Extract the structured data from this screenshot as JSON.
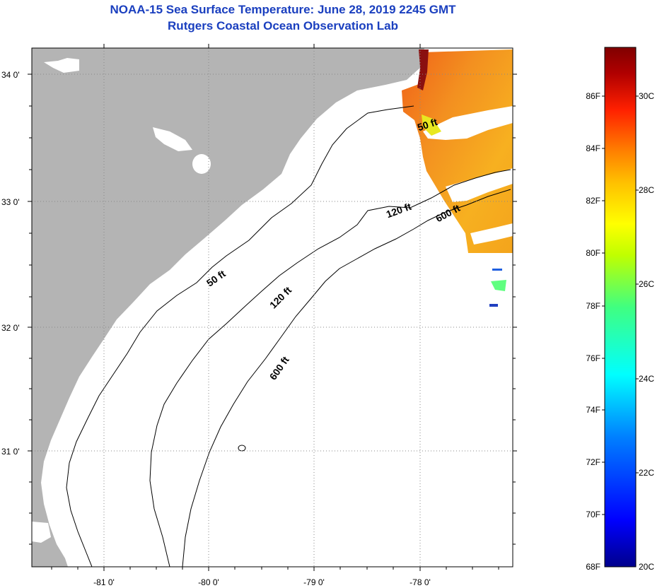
{
  "header": {
    "title": "NOAA-15 Sea Surface Temperature:  June 28, 2019 2245 GMT",
    "subtitle": "Rutgers Coastal Ocean Observation Lab"
  },
  "map": {
    "lat_labels": [
      "34 0'",
      "33 0'",
      "32 0'",
      "31 0'"
    ],
    "lon_labels": [
      "-81 0'",
      "-80 0'",
      "-79 0'",
      "-78 0'"
    ],
    "contour_labels": {
      "c50_north": "50 ft",
      "c50_south": "50 ft",
      "c120_north": "120 ft",
      "c120_south": "120 ft",
      "c600_north": "600 ft",
      "c600_south": "600 ft"
    },
    "colors": {
      "land": "#b4b4b4",
      "ocean": "#ffffff",
      "grid": "#888888"
    }
  },
  "colorbar": {
    "f_labels": [
      "86F",
      "84F",
      "82F",
      "80F",
      "78F",
      "76F",
      "74F",
      "72F",
      "70F",
      "68F"
    ],
    "c_labels": [
      "30C",
      "28C",
      "26C",
      "24C",
      "22C",
      "20C"
    ],
    "colors": [
      "#00008c",
      "#0000ff",
      "#0080ff",
      "#00ffff",
      "#40ff80",
      "#c0ff00",
      "#ffff00",
      "#ffc000",
      "#ff8000",
      "#ff2000",
      "#b00000",
      "#800000"
    ]
  }
}
